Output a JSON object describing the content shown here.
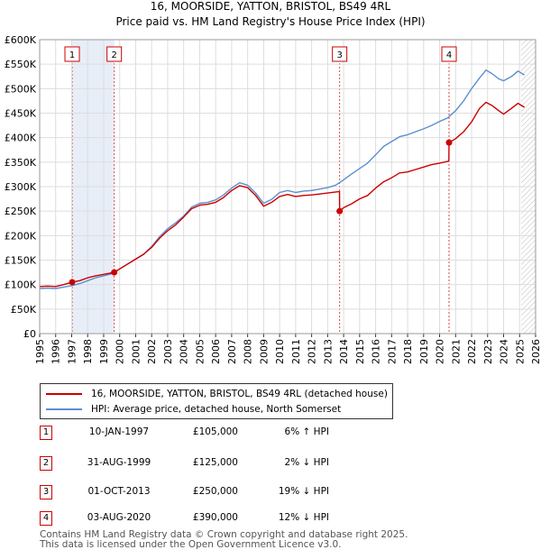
{
  "chart_data": {
    "type": "line",
    "title": "16, MOORSIDE, YATTON, BRISTOL, BS49 4RL",
    "subtitle": "Price paid vs. HM Land Registry's House Price Index (HPI)",
    "xlim": [
      1995,
      2026
    ],
    "ylim": [
      0,
      600000
    ],
    "y_ticks": [
      0,
      50000,
      100000,
      150000,
      200000,
      250000,
      300000,
      350000,
      400000,
      450000,
      500000,
      550000,
      600000
    ],
    "y_tick_labels": [
      "£0",
      "£50K",
      "£100K",
      "£150K",
      "£200K",
      "£250K",
      "£300K",
      "£350K",
      "£400K",
      "£450K",
      "£500K",
      "£550K",
      "£600K"
    ],
    "x_ticks": [
      1995,
      1996,
      1997,
      1998,
      1999,
      2000,
      2001,
      2002,
      2003,
      2004,
      2005,
      2006,
      2007,
      2008,
      2009,
      2010,
      2011,
      2012,
      2013,
      2014,
      2015,
      2016,
      2017,
      2018,
      2019,
      2020,
      2021,
      2022,
      2023,
      2024,
      2025,
      2026
    ],
    "x_tick_labels": [
      "1995",
      "1996",
      "1997",
      "1998",
      "1999",
      "2000",
      "2001",
      "2002",
      "2003",
      "2004",
      "2005",
      "2006",
      "2007",
      "2008",
      "2009",
      "2010",
      "2011",
      "2012",
      "2013",
      "2014",
      "2015",
      "2016",
      "2017",
      "2018",
      "2019",
      "2020",
      "2021",
      "2022",
      "2023",
      "2024",
      "2025",
      "2026"
    ],
    "grid": true,
    "hatched_from": 2025.1,
    "shaded_ranges": [
      [
        1997.03,
        1999.66
      ]
    ],
    "series": [
      {
        "name": "16, MOORSIDE, YATTON, BRISTOL, BS49 4RL (detached house)",
        "color": "#cc0000",
        "points": [
          [
            1995.0,
            96000
          ],
          [
            1995.5,
            97000
          ],
          [
            1996.0,
            96000
          ],
          [
            1996.5,
            100000
          ],
          [
            1997.03,
            105000
          ],
          [
            1997.5,
            108000
          ],
          [
            1998.0,
            114000
          ],
          [
            1998.5,
            118000
          ],
          [
            1999.0,
            121000
          ],
          [
            1999.66,
            125000
          ],
          [
            2000.0,
            132000
          ],
          [
            2000.5,
            142000
          ],
          [
            2001.0,
            152000
          ],
          [
            2001.5,
            162000
          ],
          [
            2002.0,
            176000
          ],
          [
            2002.5,
            195000
          ],
          [
            2003.0,
            210000
          ],
          [
            2003.5,
            222000
          ],
          [
            2004.0,
            238000
          ],
          [
            2004.5,
            255000
          ],
          [
            2005.0,
            262000
          ],
          [
            2005.5,
            264000
          ],
          [
            2006.0,
            268000
          ],
          [
            2006.5,
            278000
          ],
          [
            2007.0,
            292000
          ],
          [
            2007.5,
            302000
          ],
          [
            2008.0,
            298000
          ],
          [
            2008.5,
            282000
          ],
          [
            2009.0,
            260000
          ],
          [
            2009.5,
            268000
          ],
          [
            2010.0,
            280000
          ],
          [
            2010.5,
            284000
          ],
          [
            2011.0,
            280000
          ],
          [
            2011.5,
            282000
          ],
          [
            2012.0,
            283000
          ],
          [
            2012.5,
            285000
          ],
          [
            2013.0,
            287000
          ],
          [
            2013.74,
            290000
          ],
          [
            2013.75,
            250000
          ],
          [
            2014.0,
            257000
          ],
          [
            2014.5,
            265000
          ],
          [
            2015.0,
            275000
          ],
          [
            2015.5,
            282000
          ],
          [
            2016.0,
            297000
          ],
          [
            2016.5,
            310000
          ],
          [
            2017.0,
            318000
          ],
          [
            2017.5,
            328000
          ],
          [
            2018.0,
            330000
          ],
          [
            2018.5,
            335000
          ],
          [
            2019.0,
            340000
          ],
          [
            2019.5,
            345000
          ],
          [
            2020.0,
            348000
          ],
          [
            2020.58,
            352000
          ],
          [
            2020.59,
            390000
          ],
          [
            2021.0,
            398000
          ],
          [
            2021.5,
            412000
          ],
          [
            2022.0,
            432000
          ],
          [
            2022.5,
            460000
          ],
          [
            2022.9,
            472000
          ],
          [
            2023.3,
            465000
          ],
          [
            2023.7,
            455000
          ],
          [
            2024.0,
            448000
          ],
          [
            2024.5,
            460000
          ],
          [
            2024.9,
            470000
          ],
          [
            2025.3,
            462000
          ]
        ]
      },
      {
        "name": "HPI: Average price, detached house, North Somerset",
        "color": "#5b8fd0",
        "points": [
          [
            1995.0,
            92000
          ],
          [
            1995.5,
            93000
          ],
          [
            1996.0,
            92000
          ],
          [
            1996.5,
            95000
          ],
          [
            1997.0,
            98000
          ],
          [
            1997.5,
            102000
          ],
          [
            1998.0,
            108000
          ],
          [
            1998.5,
            114000
          ],
          [
            1999.0,
            118000
          ],
          [
            1999.5,
            122000
          ],
          [
            2000.0,
            132000
          ],
          [
            2000.5,
            142000
          ],
          [
            2001.0,
            152000
          ],
          [
            2001.5,
            162000
          ],
          [
            2002.0,
            178000
          ],
          [
            2002.5,
            198000
          ],
          [
            2003.0,
            214000
          ],
          [
            2003.5,
            226000
          ],
          [
            2004.0,
            240000
          ],
          [
            2004.5,
            258000
          ],
          [
            2005.0,
            266000
          ],
          [
            2005.5,
            268000
          ],
          [
            2006.0,
            273000
          ],
          [
            2006.5,
            283000
          ],
          [
            2007.0,
            297000
          ],
          [
            2007.5,
            308000
          ],
          [
            2008.0,
            303000
          ],
          [
            2008.5,
            287000
          ],
          [
            2009.0,
            266000
          ],
          [
            2009.5,
            274000
          ],
          [
            2010.0,
            288000
          ],
          [
            2010.5,
            292000
          ],
          [
            2011.0,
            288000
          ],
          [
            2011.5,
            291000
          ],
          [
            2012.0,
            292000
          ],
          [
            2012.5,
            295000
          ],
          [
            2013.0,
            298000
          ],
          [
            2013.5,
            303000
          ],
          [
            2014.0,
            314000
          ],
          [
            2014.5,
            326000
          ],
          [
            2015.0,
            337000
          ],
          [
            2015.5,
            348000
          ],
          [
            2016.0,
            365000
          ],
          [
            2016.5,
            382000
          ],
          [
            2017.0,
            392000
          ],
          [
            2017.5,
            402000
          ],
          [
            2018.0,
            406000
          ],
          [
            2018.5,
            412000
          ],
          [
            2019.0,
            418000
          ],
          [
            2019.5,
            425000
          ],
          [
            2020.0,
            433000
          ],
          [
            2020.5,
            440000
          ],
          [
            2021.0,
            455000
          ],
          [
            2021.5,
            475000
          ],
          [
            2022.0,
            500000
          ],
          [
            2022.5,
            522000
          ],
          [
            2022.9,
            538000
          ],
          [
            2023.3,
            530000
          ],
          [
            2023.7,
            520000
          ],
          [
            2024.0,
            516000
          ],
          [
            2024.5,
            525000
          ],
          [
            2024.9,
            536000
          ],
          [
            2025.3,
            528000
          ]
        ]
      }
    ],
    "sales": [
      {
        "id": "1",
        "x": 1997.03,
        "price": 105000
      },
      {
        "id": "2",
        "x": 1999.66,
        "price": 125000
      },
      {
        "id": "3",
        "x": 2013.75,
        "price": 250000
      },
      {
        "id": "4",
        "x": 2020.59,
        "price": 390000
      }
    ]
  },
  "legend": {
    "property_label": "16, MOORSIDE, YATTON, BRISTOL, BS49 4RL (detached house)",
    "hpi_label": "HPI: Average price, detached house, North Somerset"
  },
  "transactions": [
    {
      "num": "1",
      "date": "10-JAN-1997",
      "price": "£105,000",
      "hpi": "6% ↑ HPI"
    },
    {
      "num": "2",
      "date": "31-AUG-1999",
      "price": "£125,000",
      "hpi": "2% ↓ HPI"
    },
    {
      "num": "3",
      "date": "01-OCT-2013",
      "price": "£250,000",
      "hpi": "19% ↓ HPI"
    },
    {
      "num": "4",
      "date": "03-AUG-2020",
      "price": "£390,000",
      "hpi": "12% ↓ HPI"
    }
  ],
  "footer": {
    "line1": "Contains HM Land Registry data © Crown copyright and database right 2025.",
    "line2": "This data is licensed under the Open Government Licence v3.0."
  },
  "colors": {
    "property": "#cc0000",
    "hpi": "#5b8fd0",
    "grid": "#dddddd",
    "shade": "#e8eef8",
    "marker_border": "#cc0000"
  }
}
